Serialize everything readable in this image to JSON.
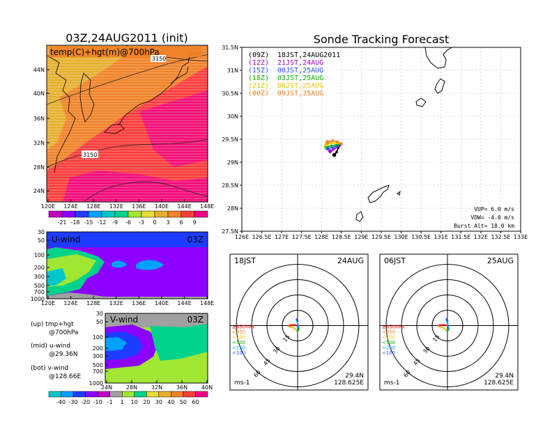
{
  "left_title": "03Z,24AUG2011 (init)",
  "right_title": "Sonde Tracking Forecast",
  "top_map": {
    "label": "temp(C)+hgt(m)@700hPa",
    "lat_ticks": [
      "44N",
      "40N",
      "36N",
      "32N",
      "28N",
      "24N"
    ],
    "lon_ticks": [
      "120E",
      "124E",
      "128E",
      "132E",
      "136E",
      "140E",
      "144E",
      "148E"
    ],
    "contour_labels": [
      "3150",
      "3150"
    ],
    "colorbar_labels": [
      "-21",
      "-18",
      "-15",
      "-12",
      "-9",
      "-6",
      "-3",
      "0",
      "3",
      "6",
      "9"
    ],
    "colorbar_colors": [
      "#c000c0",
      "#8c00ff",
      "#1e3cff",
      "#00a0ff",
      "#00c8c8",
      "#00d28c",
      "#a0e632",
      "#e6dc32",
      "#e6af2d",
      "#f08228",
      "#fa3c3c",
      "#f00082"
    ]
  },
  "u_panel": {
    "label": "U-wind",
    "time": "03Z",
    "p_ticks": [
      "30",
      "50",
      "100",
      "200",
      "300",
      "500",
      "700",
      "1000"
    ],
    "lon_ticks": [
      "120E",
      "124E",
      "128E",
      "132E",
      "136E",
      "140E",
      "144E",
      "148E"
    ]
  },
  "v_panel": {
    "label": "V-wind",
    "time": "03Z",
    "p_ticks": [
      "30",
      "50",
      "100",
      "200",
      "300",
      "500",
      "700",
      "1000"
    ],
    "lat_ticks": [
      "24N",
      "28N",
      "32N",
      "36N",
      "40N"
    ]
  },
  "notes": [
    {
      "line1": "(up) tmp+hgt",
      "line2": "@700hPa"
    },
    {
      "line1": "(mid) u-wind",
      "line2": "@29.36N"
    },
    {
      "line1": "(bot) v-wind",
      "line2": "@128.66E"
    }
  ],
  "wind_colorbar": {
    "labels": [
      "-40",
      "-30",
      "-20",
      "-10",
      "-1",
      "1",
      "10",
      "20",
      "30",
      "40",
      "50",
      "60"
    ],
    "colors": [
      "#00c8c8",
      "#00a0ff",
      "#1e3cff",
      "#8c00ff",
      "#c000c0",
      "#a0a0a0",
      "#a0e632",
      "#00d28c",
      "#e6dc32",
      "#e6af2d",
      "#f08228",
      "#fa3c3c",
      "#f00082"
    ]
  },
  "track_map": {
    "lat_ticks": [
      "31.5N",
      "31N",
      "30.5N",
      "30N",
      "29.5N",
      "29N",
      "28.5N",
      "28N",
      "27.5N"
    ],
    "lon_ticks": [
      "126E",
      "126.5E",
      "127E",
      "127.5E",
      "128E",
      "128.5E",
      "129E",
      "129.5E",
      "130E",
      "130.5E",
      "131E",
      "131.5E",
      "132E",
      "132.5E",
      "133E"
    ],
    "legend": [
      {
        "code": "(09Z)",
        "time": "18JST,24AUG2011",
        "color": "#000000"
      },
      {
        "code": "(12Z)",
        "time": "21JST,24AUG",
        "color": "#a000c8"
      },
      {
        "code": "(15Z)",
        "time": "00JST,25AUG",
        "color": "#2850ff"
      },
      {
        "code": "(18Z)",
        "time": "03JST,25AUG",
        "color": "#00b400"
      },
      {
        "code": "(21Z)",
        "time": "06JST,25AUG",
        "color": "#e6c800"
      },
      {
        "code": "(00Z)",
        "time": "09JST,25AUG",
        "color": "#f08228"
      }
    ],
    "params": [
      "VUP= 6.0 m/s",
      "VDW= -4.0 m/s",
      "Burst Alt= 18.0 km"
    ]
  },
  "hodo_left": {
    "time": "18JST",
    "date": "24AUG",
    "levels": [
      "≥850hPa",
      "<850",
      "<700",
      "<500",
      "<250",
      "<100"
    ],
    "level_colors": [
      "#fa0000",
      "#f08228",
      "#e6c800",
      "#00b400",
      "#00a0ff",
      "#2850ff"
    ],
    "ring_labels": [
      "15",
      "30",
      "45",
      "60"
    ],
    "unit": "ms-1",
    "lat": "29.4N",
    "lon": "128.625E"
  },
  "hodo_right": {
    "time": "06JST",
    "date": "25AUG",
    "levels": [
      "≥850hPa",
      "<850",
      "<700",
      "<500",
      "<250",
      "<100"
    ],
    "level_colors": [
      "#fa0000",
      "#f08228",
      "#e6c800",
      "#00b400",
      "#00a0ff",
      "#2850ff"
    ],
    "ring_labels": [
      "15",
      "30",
      "45",
      "60"
    ],
    "unit": "ms-1",
    "lat": "29.4N",
    "lon": "128.625E"
  },
  "chart_data": [
    {
      "type": "heatmap",
      "title": "temp(C)+hgt(m)@700hPa",
      "xlabel": "",
      "ylabel": "",
      "x_range": [
        "120E",
        "148E"
      ],
      "y_range": [
        "24N",
        "44N"
      ],
      "contour_labels": [
        3150,
        3150
      ],
      "color_levels": [
        -21,
        -18,
        -15,
        -12,
        -9,
        -6,
        -3,
        0,
        3,
        6,
        9
      ]
    },
    {
      "type": "heatmap",
      "title": "U-wind 03Z",
      "x_range": [
        "120E",
        "148E"
      ],
      "y_levels_hPa": [
        30,
        50,
        100,
        200,
        300,
        500,
        700,
        1000
      ]
    },
    {
      "type": "heatmap",
      "title": "V-wind 03Z",
      "x_range": [
        "24N",
        "40N"
      ],
      "y_levels_hPa": [
        30,
        50,
        100,
        200,
        300,
        500,
        700,
        1000
      ]
    },
    {
      "type": "line",
      "title": "Sonde Tracking Forecast",
      "xlim": [
        126,
        133
      ],
      "ylim": [
        27.5,
        31.5
      ],
      "series": [
        {
          "name": "(09Z) 18JST,24AUG2011",
          "points": [
            [
              128.5,
              29.4
            ],
            [
              128.42,
              29.32
            ],
            [
              128.38,
              29.22
            ],
            [
              128.32,
              29.16
            ]
          ]
        },
        {
          "name": "(12Z) 21JST,24AUG",
          "points": [
            [
              128.5,
              29.4
            ],
            [
              128.42,
              29.35
            ],
            [
              128.3,
              29.28
            ],
            [
              128.22,
              29.24
            ]
          ]
        },
        {
          "name": "(15Z) 00JST,25AUG",
          "points": [
            [
              128.5,
              29.4
            ],
            [
              128.4,
              29.36
            ],
            [
              128.28,
              29.32
            ],
            [
              128.15,
              29.3
            ]
          ]
        },
        {
          "name": "(18Z) 03JST,25AUG",
          "points": [
            [
              128.5,
              29.4
            ],
            [
              128.38,
              29.38
            ],
            [
              128.25,
              29.36
            ],
            [
              128.12,
              29.34
            ]
          ]
        },
        {
          "name": "(21Z) 06JST,25AUG",
          "points": [
            [
              128.5,
              29.4
            ],
            [
              128.38,
              29.42
            ],
            [
              128.25,
              29.42
            ],
            [
              128.12,
              29.38
            ]
          ]
        },
        {
          "name": "(00Z) 09JST,25AUG",
          "points": [
            [
              128.5,
              29.4
            ],
            [
              128.4,
              29.45
            ],
            [
              128.28,
              29.47
            ],
            [
              128.15,
              29.44
            ]
          ]
        }
      ]
    }
  ]
}
